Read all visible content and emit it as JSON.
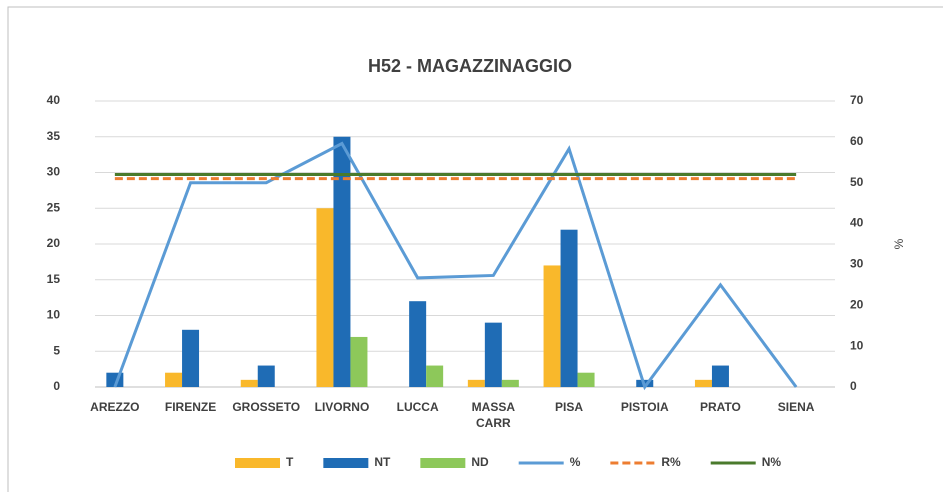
{
  "chart_data": {
    "type": "bar",
    "title": "H52 - MAGAZZINAGGIO",
    "y2label": "%",
    "categories": [
      "AREZZO",
      "FIRENZE",
      "GROSSETO",
      "LIVORNO",
      "LUCCA",
      "MASSA CARR",
      "PISA",
      "PISTOIA",
      "PRATO",
      "SIENA"
    ],
    "series": [
      {
        "name": "T",
        "type": "bar",
        "color": "#f9b82b",
        "values": [
          0,
          2,
          1,
          25,
          0,
          1,
          17,
          0,
          1,
          0
        ]
      },
      {
        "name": "NT",
        "type": "bar",
        "color": "#1f6cb5",
        "values": [
          2,
          8,
          3,
          35,
          12,
          9,
          22,
          1,
          3,
          0
        ]
      },
      {
        "name": "ND",
        "type": "bar",
        "color": "#8dc85a",
        "values": [
          0,
          0,
          0,
          7,
          3,
          1,
          2,
          0,
          0,
          0
        ]
      },
      {
        "name": "%",
        "type": "line",
        "axis": "y2",
        "color": "#5b9bd5",
        "values": [
          0,
          50,
          50,
          59.6,
          26.7,
          27.3,
          58.3,
          0,
          25,
          0
        ]
      },
      {
        "name": "R%",
        "type": "line",
        "axis": "y2",
        "color": "#ed7d31",
        "dashed": true,
        "values": [
          51,
          51,
          51,
          51,
          51,
          51,
          51,
          51,
          51,
          51
        ]
      },
      {
        "name": "N%",
        "type": "line",
        "axis": "y2",
        "color": "#4a7a2c",
        "values": [
          52,
          52,
          52,
          52,
          52,
          52,
          52,
          52,
          52,
          52
        ]
      }
    ],
    "ylim": [
      0,
      40
    ],
    "yticks": [
      0,
      5,
      10,
      15,
      20,
      25,
      30,
      35,
      40
    ],
    "y2lim": [
      0,
      70
    ],
    "y2ticks": [
      0,
      10,
      20,
      30,
      40,
      50,
      60,
      70
    ],
    "grid": true,
    "legend": "bottom"
  }
}
